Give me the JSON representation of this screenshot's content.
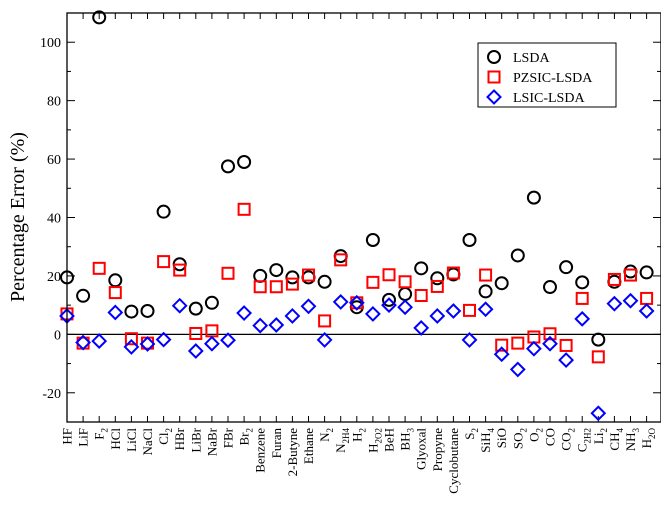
{
  "chart_data": {
    "type": "scatter",
    "title": "",
    "xlabel": "",
    "ylabel": "Percentage Error (%)",
    "ylim": [
      -30,
      110
    ],
    "yticks": [
      -20,
      0,
      20,
      40,
      60,
      80,
      100
    ],
    "grid": false,
    "legend_position": "top-right",
    "zero_line": true,
    "categories": [
      {
        "main": "HF",
        "sub": ""
      },
      {
        "main": "LiF",
        "sub": ""
      },
      {
        "main": "F",
        "sub": "2"
      },
      {
        "main": "HCl",
        "sub": ""
      },
      {
        "main": "LiCl",
        "sub": ""
      },
      {
        "main": "NaCl",
        "sub": ""
      },
      {
        "main": "Cl",
        "sub": "2"
      },
      {
        "main": "HBr",
        "sub": ""
      },
      {
        "main": "LiBr",
        "sub": ""
      },
      {
        "main": "NaBr",
        "sub": ""
      },
      {
        "main": "FBr",
        "sub": ""
      },
      {
        "main": "Br",
        "sub": "2"
      },
      {
        "main": "Benzene",
        "sub": ""
      },
      {
        "main": "Furan",
        "sub": ""
      },
      {
        "main": "2-Butyne",
        "sub": ""
      },
      {
        "main": "Ethane",
        "sub": ""
      },
      {
        "main": "N",
        "sub": "2"
      },
      {
        "main": "N",
        "sub": "2H4"
      },
      {
        "main": "H",
        "sub": "2"
      },
      {
        "main": "H",
        "sub": "2O2"
      },
      {
        "main": "BeH",
        "sub": ""
      },
      {
        "main": "BH",
        "sub": "3"
      },
      {
        "main": "Glyoxal",
        "sub": ""
      },
      {
        "main": "Propyne",
        "sub": ""
      },
      {
        "main": "Cyclobutane",
        "sub": ""
      },
      {
        "main": "S",
        "sub": "2"
      },
      {
        "main": "SiH",
        "sub": "4"
      },
      {
        "main": "SiO",
        "sub": ""
      },
      {
        "main": "SO",
        "sub": "2"
      },
      {
        "main": "O",
        "sub": "2"
      },
      {
        "main": "CO",
        "sub": ""
      },
      {
        "main": "CO",
        "sub": "2"
      },
      {
        "main": "C",
        "sub": "2H2"
      },
      {
        "main": "Li",
        "sub": "2"
      },
      {
        "main": "CH",
        "sub": "4"
      },
      {
        "main": "NH",
        "sub": "3"
      },
      {
        "main": "H",
        "sub": "2O"
      }
    ],
    "series": [
      {
        "name": "LSDA",
        "marker": "circle",
        "color": "#000000",
        "values": [
          19.5,
          13.2,
          108.5,
          18.5,
          7.8,
          8.0,
          42.0,
          24.0,
          8.8,
          10.8,
          57.5,
          59.0,
          20.0,
          22.0,
          19.5,
          19.5,
          18.0,
          26.8,
          9.3,
          32.3,
          11.8,
          13.8,
          22.6,
          19.2,
          20.5,
          32.3,
          14.7,
          17.5,
          27.0,
          46.8,
          16.2,
          23.0,
          17.8,
          -1.8,
          18.0,
          21.5,
          21.2
        ]
      },
      {
        "name": "PZSIC-LSDA",
        "marker": "square",
        "color": "#ff0000",
        "values": [
          7.0,
          -3.0,
          22.6,
          14.3,
          -1.5,
          -3.0,
          24.9,
          22.0,
          0.3,
          1.2,
          20.9,
          42.8,
          16.3,
          16.3,
          17.2,
          20.3,
          4.6,
          25.5,
          10.8,
          17.8,
          20.4,
          18.0,
          13.3,
          16.4,
          21.0,
          8.2,
          20.3,
          -3.7,
          -3.0,
          -0.9,
          0.2,
          -3.8,
          12.3,
          -7.7,
          18.8,
          20.3,
          12.3
        ]
      },
      {
        "name": "LSIC-LSDA",
        "marker": "diamond",
        "color": "#0000ff",
        "values": [
          6.3,
          -2.8,
          -2.3,
          7.5,
          -4.3,
          -3.3,
          -1.8,
          9.8,
          -5.7,
          -3.2,
          -2.0,
          7.3,
          3.0,
          3.2,
          6.3,
          9.6,
          -1.9,
          11.1,
          10.8,
          7.0,
          10.0,
          9.3,
          2.2,
          6.3,
          8.0,
          -1.9,
          8.6,
          -6.8,
          -12.0,
          -4.9,
          -3.2,
          -8.8,
          5.3,
          -27.0,
          10.5,
          11.5,
          8.0
        ]
      }
    ]
  }
}
